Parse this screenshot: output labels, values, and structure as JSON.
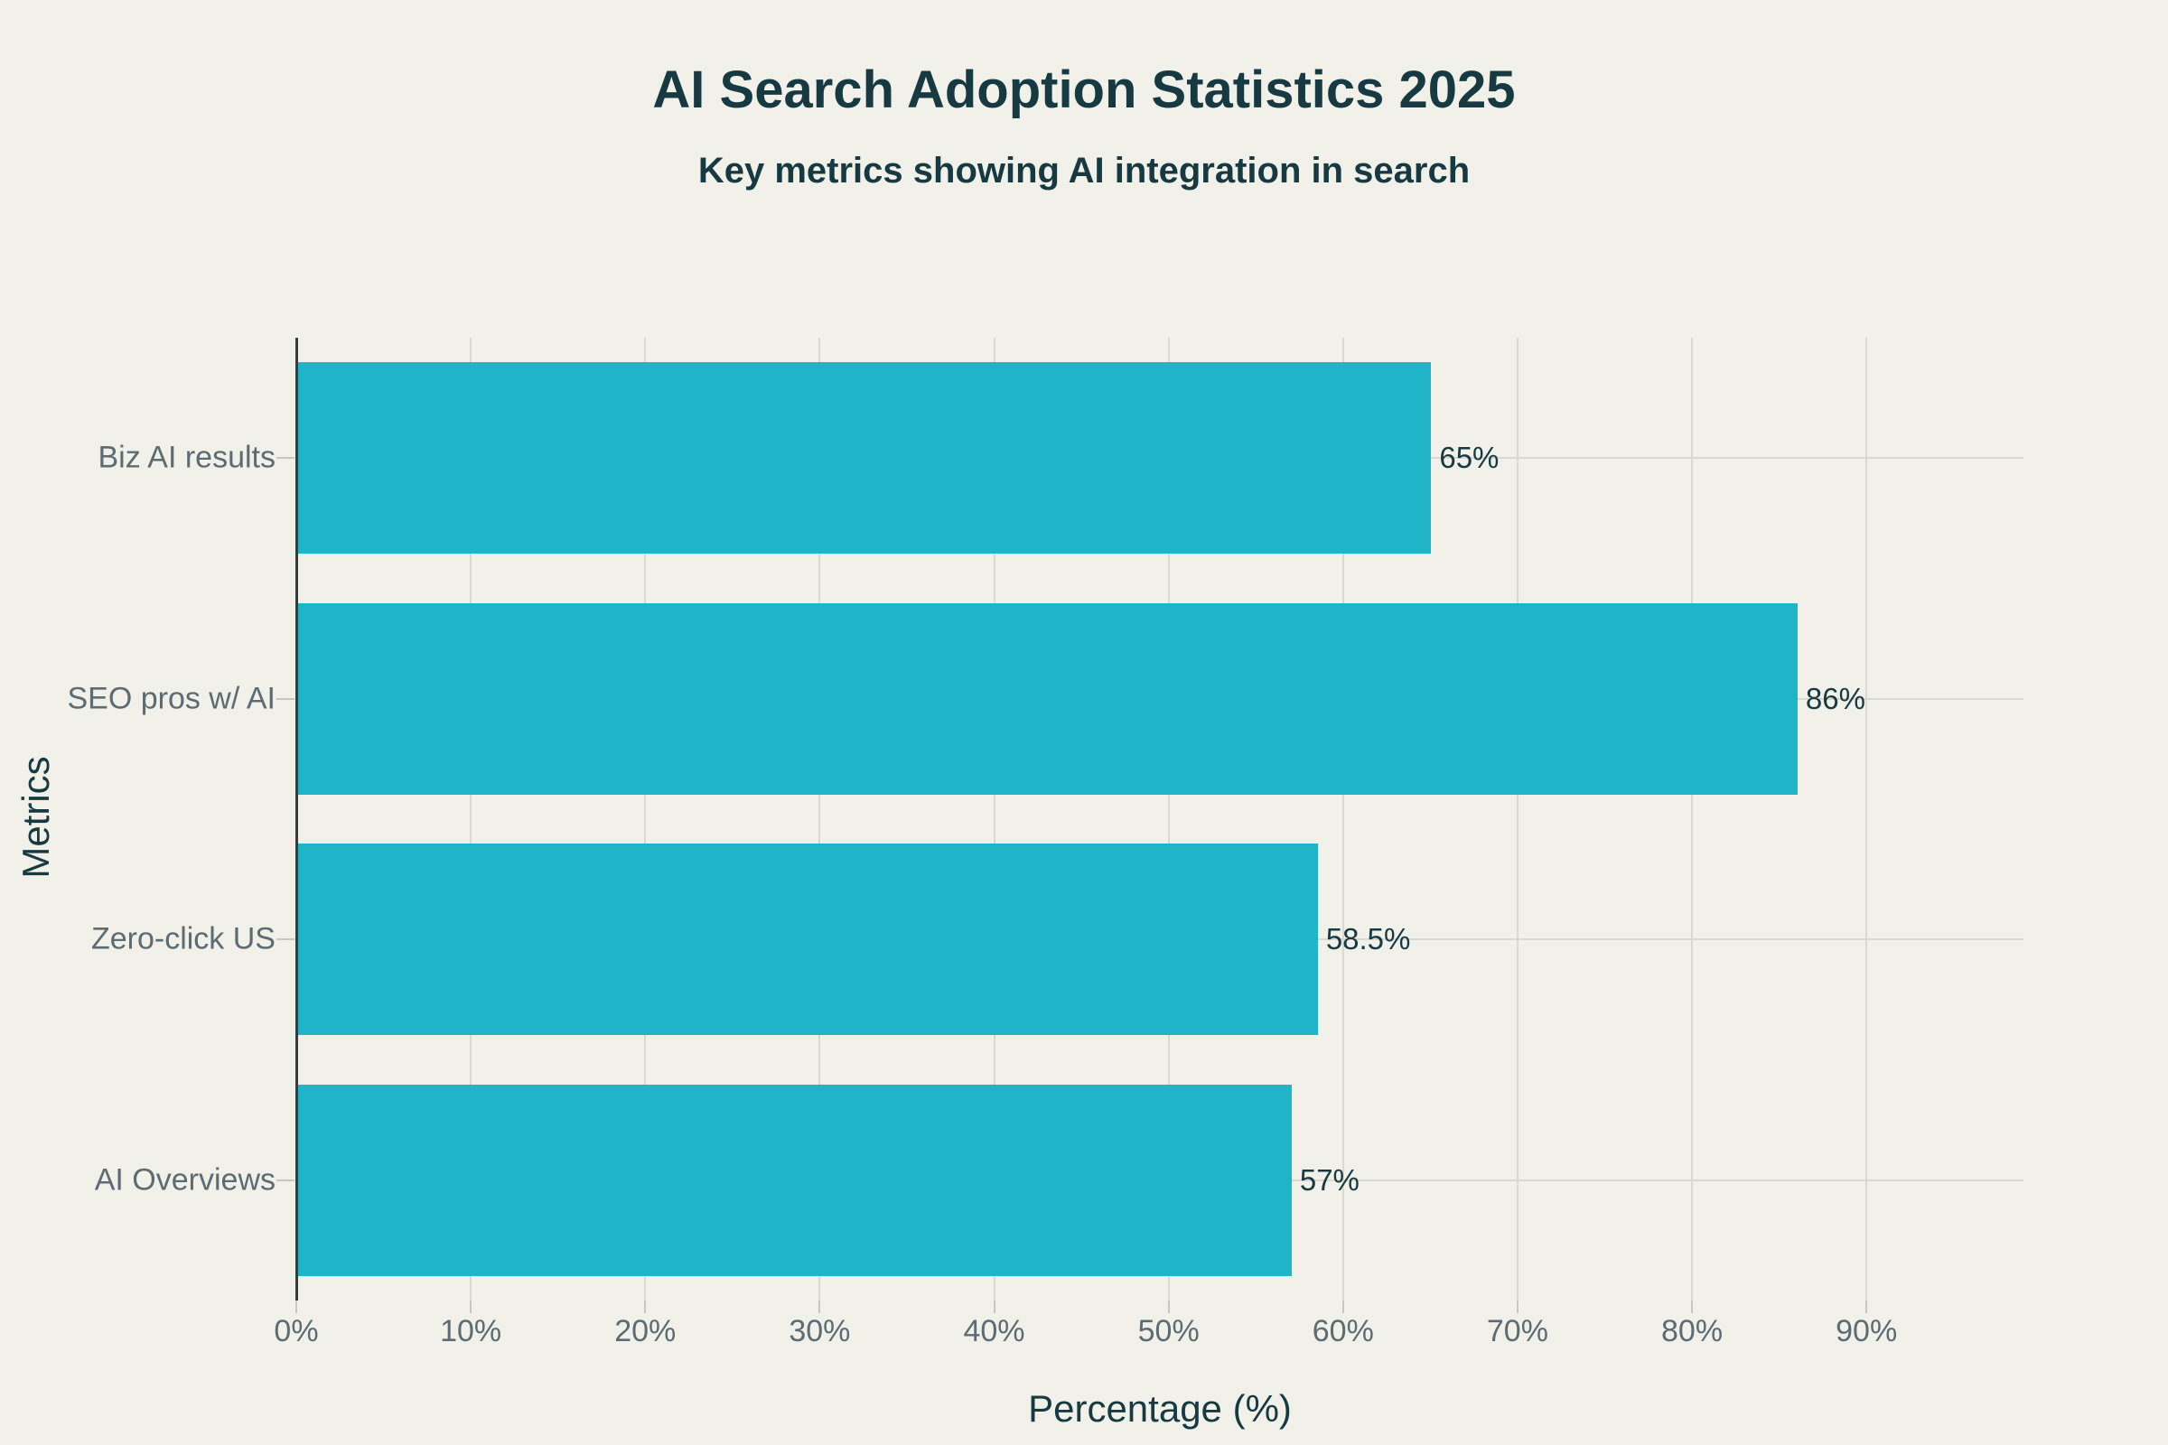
{
  "chart_data": {
    "type": "bar",
    "orientation": "horizontal",
    "title": "AI Search Adoption Statistics 2025",
    "subtitle": "Key metrics showing AI integration in search",
    "xlabel": "Percentage (%)",
    "ylabel": "Metrics",
    "categories": [
      "Biz AI results",
      "SEO pros w/ AI",
      "Zero-click US",
      "AI Overviews"
    ],
    "values": [
      65,
      86,
      58.5,
      57
    ],
    "value_labels": [
      "65%",
      "86%",
      "58.5%",
      "57%"
    ],
    "x_ticks": [
      0,
      10,
      20,
      30,
      40,
      50,
      60,
      70,
      80,
      90
    ],
    "x_tick_labels": [
      "0%",
      "10%",
      "20%",
      "30%",
      "40%",
      "50%",
      "60%",
      "70%",
      "80%",
      "90%"
    ],
    "xlim": [
      0,
      99
    ],
    "grid": true,
    "legend": false,
    "colors": {
      "background": "#f1f1ea",
      "bar": "#1fb4c8",
      "text_dark": "#173a42",
      "text_gray": "#5d6b73",
      "gridline": "#dbd8d2",
      "tick_mark": "#c9c6c0",
      "axis_spine": "#363b3f"
    }
  }
}
